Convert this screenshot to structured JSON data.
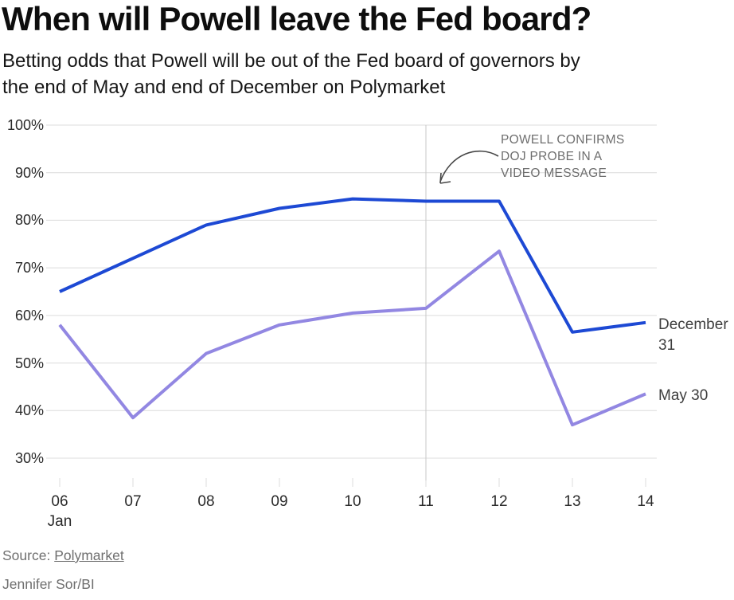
{
  "header": {
    "title": "When will Powell leave the Fed board?",
    "subtitle_line1": "Betting odds that Powell will be out of the Fed board of governors by",
    "subtitle_line2": "the end of May and end of December on Polymarket"
  },
  "chart_data": {
    "type": "line",
    "title": "When will Powell leave the Fed board?",
    "subtitle": "Betting odds that Powell will be out of the Fed board of governors by the end of May and end of December on Polymarket",
    "categories": [
      "06",
      "07",
      "08",
      "09",
      "10",
      "11",
      "12",
      "13",
      "14"
    ],
    "x_label_month": "Jan",
    "y_ticks": [
      100,
      90,
      80,
      70,
      60,
      50,
      40,
      30
    ],
    "y_tick_suffix": "%",
    "ylim": [
      30,
      100
    ],
    "grid": "horizontal",
    "legend_position": "right-of-line-end",
    "series": [
      {
        "name": "December 31",
        "label_lines": [
          "December",
          "31"
        ],
        "color": "#1d49d4",
        "values": [
          65,
          72,
          79,
          82.5,
          84.5,
          84,
          84,
          56.5,
          58.5
        ]
      },
      {
        "name": "May 30",
        "label_lines": [
          "May 30"
        ],
        "color": "#9287e2",
        "values": [
          58,
          38.5,
          52,
          58,
          60.5,
          61.5,
          73.5,
          37,
          43.5
        ]
      }
    ],
    "annotation": {
      "lines": [
        "POWELL CONFIRMS",
        "DOJ PROBE IN A",
        "VIDEO MESSAGE"
      ],
      "target_category": "11"
    },
    "reference_line_category": "11"
  },
  "footer": {
    "source_label": "Source:",
    "source_link": "Polymarket",
    "credit": "Jennifer Sor/BI"
  },
  "colors": {
    "series_december": "#1d49d4",
    "series_may": "#9287e2",
    "grid": "#dcdcdc",
    "reference_line": "#c8c8c8",
    "arrow": "#474747",
    "annotation_text": "#6e6e6e",
    "axis_text": "#2a2a2a",
    "series_label_text": "#3e3e3e",
    "footer_text": "#6f6f6f",
    "title_text": "#0e0e0e",
    "background": "#ffffff"
  }
}
